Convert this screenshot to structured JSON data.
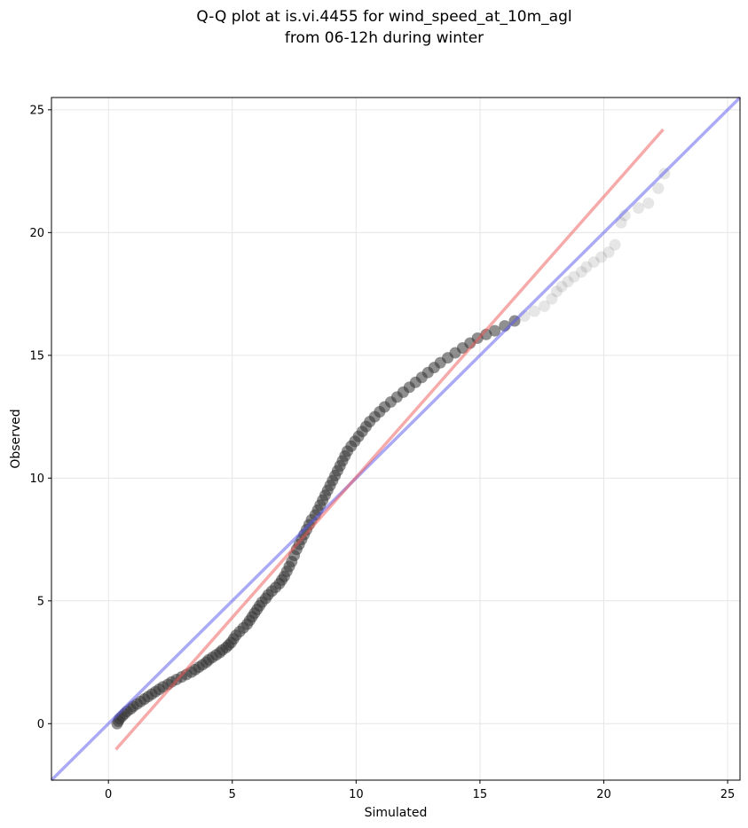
{
  "chart_data": {
    "type": "scatter",
    "title_line1": "Q-Q plot at is.vi.4455 for wind_speed_at_10m_agl",
    "title_line2": "from 06-12h during winter",
    "xlabel": "Simulated",
    "ylabel": "Observed",
    "xlim": [
      -2.3,
      25.5
    ],
    "ylim": [
      -2.3,
      25.5
    ],
    "xticks": [
      0,
      5,
      10,
      15,
      20,
      25
    ],
    "yticks": [
      0,
      5,
      10,
      15,
      20,
      25
    ],
    "grid": true,
    "colors": {
      "points": "#333333",
      "identity_line": "#5555ee",
      "fit_line": "#ee5555"
    },
    "identity_line": {
      "x": [
        -2.3,
        25.5
      ],
      "y": [
        -2.3,
        25.5
      ]
    },
    "fit_line": {
      "x": [
        0.3,
        22.4
      ],
      "y": [
        -1.05,
        24.2
      ]
    },
    "points": [
      [
        0.35,
        0.0
      ],
      [
        0.4,
        0.1
      ],
      [
        0.45,
        0.2
      ],
      [
        0.55,
        0.3
      ],
      [
        0.65,
        0.4
      ],
      [
        0.75,
        0.5
      ],
      [
        0.9,
        0.6
      ],
      [
        1.0,
        0.7
      ],
      [
        1.15,
        0.8
      ],
      [
        1.3,
        0.9
      ],
      [
        1.45,
        1.0
      ],
      [
        1.6,
        1.1
      ],
      [
        1.75,
        1.2
      ],
      [
        1.9,
        1.3
      ],
      [
        2.05,
        1.4
      ],
      [
        2.2,
        1.5
      ],
      [
        2.4,
        1.6
      ],
      [
        2.55,
        1.7
      ],
      [
        2.75,
        1.8
      ],
      [
        2.95,
        1.9
      ],
      [
        3.15,
        2.0
      ],
      [
        3.35,
        2.1
      ],
      [
        3.5,
        2.2
      ],
      [
        3.65,
        2.3
      ],
      [
        3.8,
        2.4
      ],
      [
        3.95,
        2.5
      ],
      [
        4.05,
        2.6
      ],
      [
        4.2,
        2.7
      ],
      [
        4.35,
        2.8
      ],
      [
        4.5,
        2.9
      ],
      [
        4.6,
        3.0
      ],
      [
        4.75,
        3.1
      ],
      [
        4.85,
        3.2
      ],
      [
        4.95,
        3.3
      ],
      [
        5.05,
        3.45
      ],
      [
        5.15,
        3.6
      ],
      [
        5.3,
        3.75
      ],
      [
        5.45,
        3.9
      ],
      [
        5.6,
        4.05
      ],
      [
        5.7,
        4.2
      ],
      [
        5.8,
        4.35
      ],
      [
        5.9,
        4.5
      ],
      [
        6.0,
        4.65
      ],
      [
        6.1,
        4.8
      ],
      [
        6.2,
        4.95
      ],
      [
        6.35,
        5.1
      ],
      [
        6.45,
        5.25
      ],
      [
        6.6,
        5.4
      ],
      [
        6.75,
        5.55
      ],
      [
        6.9,
        5.7
      ],
      [
        7.0,
        5.85
      ],
      [
        7.1,
        6.0
      ],
      [
        7.2,
        6.2
      ],
      [
        7.3,
        6.4
      ],
      [
        7.4,
        6.6
      ],
      [
        7.5,
        6.85
      ],
      [
        7.6,
        7.1
      ],
      [
        7.7,
        7.3
      ],
      [
        7.8,
        7.5
      ],
      [
        7.9,
        7.7
      ],
      [
        8.0,
        7.9
      ],
      [
        8.1,
        8.1
      ],
      [
        8.2,
        8.3
      ],
      [
        8.35,
        8.5
      ],
      [
        8.45,
        8.7
      ],
      [
        8.55,
        8.9
      ],
      [
        8.65,
        9.1
      ],
      [
        8.75,
        9.3
      ],
      [
        8.85,
        9.5
      ],
      [
        8.95,
        9.7
      ],
      [
        9.05,
        9.9
      ],
      [
        9.15,
        10.1
      ],
      [
        9.25,
        10.3
      ],
      [
        9.35,
        10.5
      ],
      [
        9.45,
        10.7
      ],
      [
        9.55,
        10.9
      ],
      [
        9.65,
        11.1
      ],
      [
        9.8,
        11.3
      ],
      [
        9.95,
        11.5
      ],
      [
        10.1,
        11.7
      ],
      [
        10.25,
        11.9
      ],
      [
        10.4,
        12.1
      ],
      [
        10.55,
        12.3
      ],
      [
        10.75,
        12.5
      ],
      [
        10.95,
        12.7
      ],
      [
        11.15,
        12.9
      ],
      [
        11.4,
        13.1
      ],
      [
        11.65,
        13.3
      ],
      [
        11.9,
        13.5
      ],
      [
        12.15,
        13.7
      ],
      [
        12.4,
        13.9
      ],
      [
        12.65,
        14.1
      ],
      [
        12.9,
        14.3
      ],
      [
        13.15,
        14.5
      ],
      [
        13.4,
        14.7
      ],
      [
        13.7,
        14.9
      ],
      [
        14.0,
        15.1
      ],
      [
        14.3,
        15.3
      ],
      [
        14.6,
        15.5
      ],
      [
        14.9,
        15.7
      ],
      [
        15.25,
        15.85
      ],
      [
        15.6,
        16.0
      ],
      [
        16.0,
        16.2
      ],
      [
        16.4,
        16.4
      ],
      [
        16.8,
        16.6
      ],
      [
        17.2,
        16.8
      ],
      [
        17.6,
        17.0
      ],
      [
        17.9,
        17.3
      ],
      [
        18.1,
        17.6
      ],
      [
        18.3,
        17.8
      ],
      [
        18.55,
        18.0
      ],
      [
        18.8,
        18.2
      ],
      [
        19.1,
        18.4
      ],
      [
        19.3,
        18.6
      ],
      [
        19.6,
        18.8
      ],
      [
        19.9,
        19.0
      ],
      [
        20.2,
        19.2
      ],
      [
        20.45,
        19.5
      ],
      [
        20.7,
        20.4
      ],
      [
        20.85,
        20.7
      ],
      [
        21.4,
        21.0
      ],
      [
        21.8,
        21.2
      ],
      [
        22.2,
        21.8
      ],
      [
        22.45,
        22.4
      ]
    ]
  }
}
